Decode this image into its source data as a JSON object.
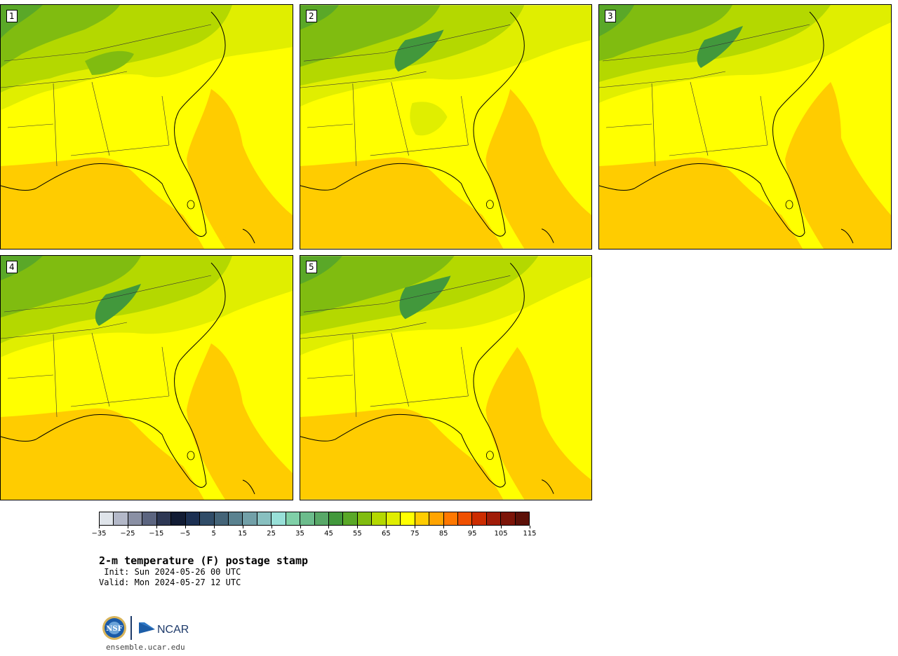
{
  "panels": [
    {
      "label": "1"
    },
    {
      "label": "2"
    },
    {
      "label": "3"
    },
    {
      "label": "4"
    },
    {
      "label": "5"
    }
  ],
  "colorbar": {
    "colors": [
      "#dfe4ea",
      "#b3b8c8",
      "#8a90a4",
      "#5c6580",
      "#2e3854",
      "#121c34",
      "#1c3052",
      "#304c68",
      "#446478",
      "#5a8290",
      "#72a0a8",
      "#88c0c0",
      "#98e0d8",
      "#80d0a8",
      "#6cbc8c",
      "#58a868",
      "#42983c",
      "#5aa828",
      "#80bc10",
      "#b4d800",
      "#e0ee00",
      "#ffff00",
      "#ffcc00",
      "#ffa400",
      "#ff7800",
      "#f05000",
      "#cc2c00",
      "#a01c08",
      "#7c1408",
      "#5c1008"
    ],
    "ticks": [
      "−35",
      "−25",
      "−15",
      "−5",
      "5",
      "15",
      "25",
      "35",
      "45",
      "55",
      "65",
      "75",
      "85",
      "95",
      "105",
      "115"
    ]
  },
  "title": "2-m temperature (F) postage stamp",
  "init": " Init: Sun 2024-05-26 00 UTC",
  "valid": "Valid: Mon 2024-05-27 12 UTC",
  "logo": {
    "left": "NSF",
    "right": "NCAR"
  },
  "site": "ensemble.ucar.edu"
}
